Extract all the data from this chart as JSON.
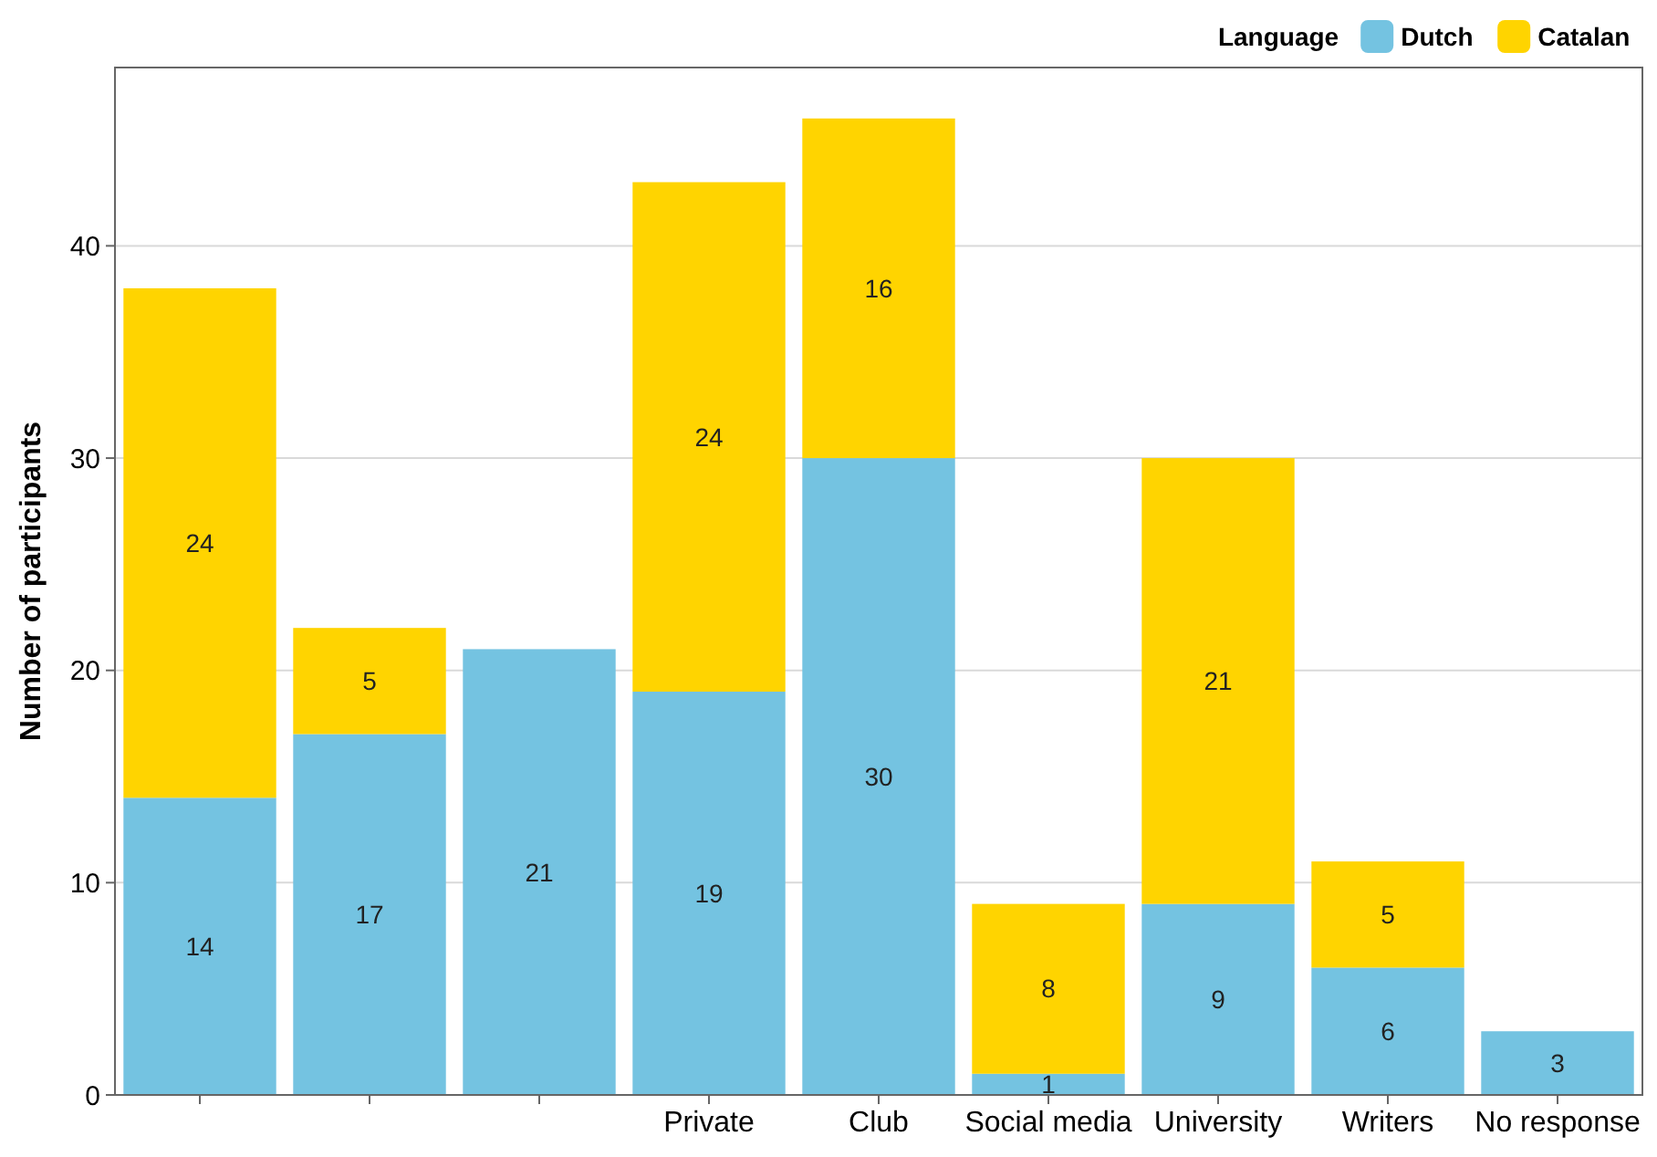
{
  "chart_data": {
    "type": "bar",
    "stacked": true,
    "ylabel": "Number of participants",
    "legend_title": "Language",
    "legend": "top right",
    "grid": "y",
    "data_labels": true,
    "categories": [
      null,
      null,
      null,
      "Private",
      "Club",
      "Social media",
      "University",
      "Writers",
      "No response"
    ],
    "ylim": [
      0,
      48.4
    ],
    "yticks": [
      0,
      10,
      20,
      30,
      40
    ],
    "series": [
      {
        "name": "Dutch",
        "color": "#74c3e1",
        "values": [
          14,
          17,
          21,
          19,
          30,
          1,
          9,
          6,
          3
        ]
      },
      {
        "name": "Catalan",
        "color": "#ffd400",
        "values": [
          24,
          5,
          null,
          24,
          16,
          8,
          21,
          5,
          null
        ]
      }
    ]
  }
}
